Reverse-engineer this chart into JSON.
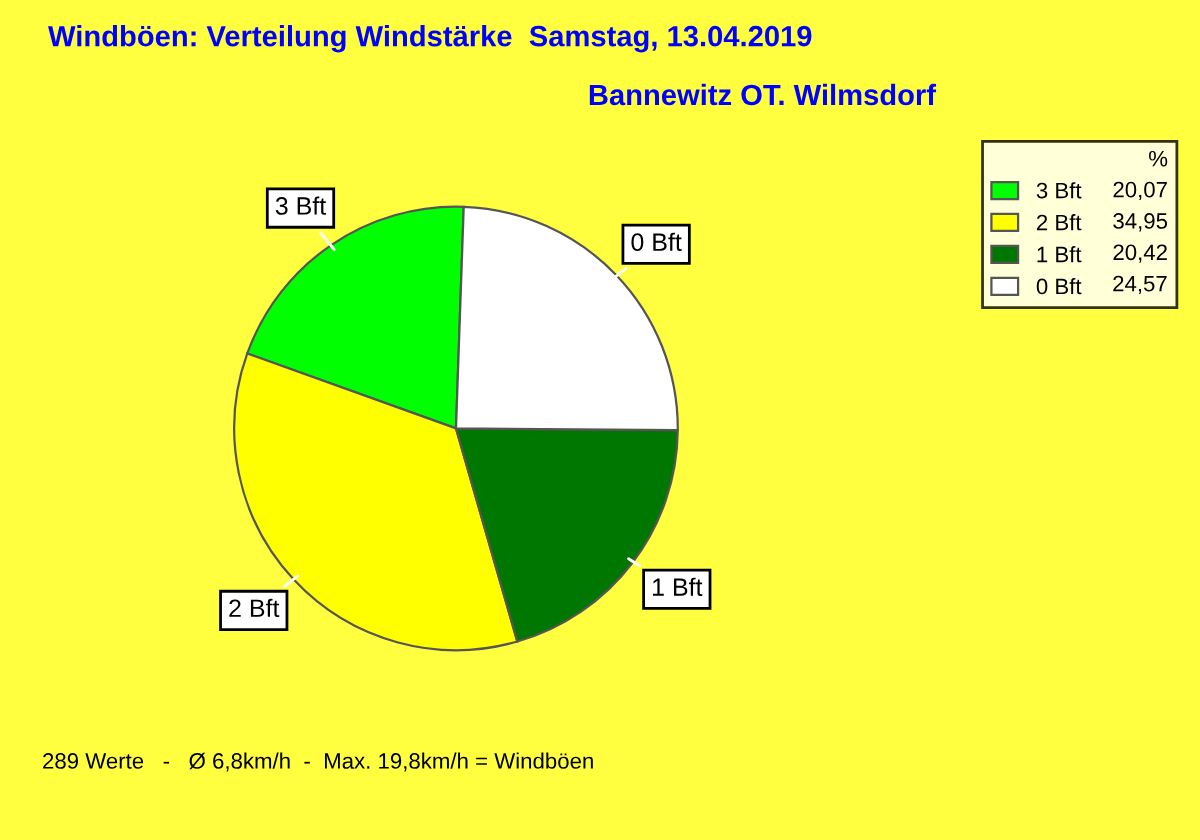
{
  "chart_data": {
    "type": "pie",
    "title": "Windböen: Verteilung Windstärke  Samstag, 13.04.2019",
    "subtitle": "Bannewitz OT. Wilmsdorf",
    "categories": [
      "3 Bft",
      "2 Bft",
      "1 Bft",
      "0 Bft"
    ],
    "values": [
      20.07,
      34.95,
      20.42,
      24.57
    ],
    "value_labels": [
      "20,07",
      "34,95",
      "20,42",
      "24,57"
    ],
    "colors": [
      "#00ff00",
      "#ffff00",
      "#007700",
      "#ffffff"
    ],
    "legend": "top right",
    "legend_title": "%",
    "annotations": [
      "289 Werte   -   Ø 6,8km/h  -  Max. 19,8km/h = Windböen"
    ]
  }
}
